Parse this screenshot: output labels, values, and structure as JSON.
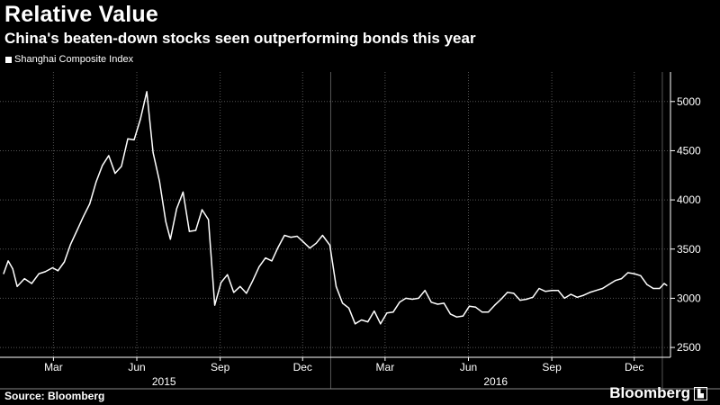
{
  "header": {
    "title": "Relative Value",
    "subtitle": "China's beaten-down stocks seen outperforming bonds this year"
  },
  "legend": {
    "label": "Shanghai Composite Index"
  },
  "footer": {
    "source": "Source: Bloomberg",
    "brand": "Bloomberg"
  },
  "colors": {
    "background": "#000000",
    "line": "#ffffff",
    "grid": "#555555"
  },
  "chart_data": {
    "type": "line",
    "title": "Relative Value",
    "subtitle": "China's beaten-down stocks seen outperforming bonds this year",
    "xlabel": "",
    "ylabel": "",
    "ylim": [
      2400,
      5300
    ],
    "y_ticks": [
      2500,
      3000,
      3500,
      4000,
      4500,
      5000
    ],
    "x_range": [
      "2015-01-01",
      "2017-01-10"
    ],
    "x_ticks": [
      {
        "date": "2015-03-01",
        "label": "Mar"
      },
      {
        "date": "2015-06-01",
        "label": "Jun"
      },
      {
        "date": "2015-09-01",
        "label": "Sep"
      },
      {
        "date": "2015-12-01",
        "label": "Dec"
      },
      {
        "date": "2016-03-01",
        "label": "Mar"
      },
      {
        "date": "2016-06-01",
        "label": "Jun"
      },
      {
        "date": "2016-09-01",
        "label": "Sep"
      },
      {
        "date": "2016-12-01",
        "label": "Dec"
      }
    ],
    "year_labels": [
      {
        "label": "2015",
        "center": "2015-07-01"
      },
      {
        "label": "2016",
        "center": "2016-07-01"
      }
    ],
    "year_dividers": [
      "2016-01-01",
      "2017-01-01"
    ],
    "grid": true,
    "legend_position": "top-left",
    "series": [
      {
        "name": "Shanghai Composite Index",
        "x": [
          "2015-01-05",
          "2015-01-10",
          "2015-01-15",
          "2015-01-20",
          "2015-01-28",
          "2015-02-05",
          "2015-02-13",
          "2015-02-20",
          "2015-02-28",
          "2015-03-06",
          "2015-03-13",
          "2015-03-20",
          "2015-03-27",
          "2015-04-03",
          "2015-04-10",
          "2015-04-17",
          "2015-04-24",
          "2015-05-01",
          "2015-05-08",
          "2015-05-15",
          "2015-05-22",
          "2015-05-29",
          "2015-06-05",
          "2015-06-12",
          "2015-06-19",
          "2015-06-26",
          "2015-07-03",
          "2015-07-08",
          "2015-07-15",
          "2015-07-22",
          "2015-07-29",
          "2015-08-05",
          "2015-08-12",
          "2015-08-19",
          "2015-08-26",
          "2015-09-02",
          "2015-09-09",
          "2015-09-16",
          "2015-09-23",
          "2015-09-30",
          "2015-10-07",
          "2015-10-14",
          "2015-10-21",
          "2015-10-28",
          "2015-11-04",
          "2015-11-11",
          "2015-11-18",
          "2015-11-25",
          "2015-12-02",
          "2015-12-09",
          "2015-12-16",
          "2015-12-23",
          "2015-12-31",
          "2016-01-07",
          "2016-01-14",
          "2016-01-21",
          "2016-01-28",
          "2016-02-04",
          "2016-02-11",
          "2016-02-18",
          "2016-02-25",
          "2016-03-03",
          "2016-03-10",
          "2016-03-17",
          "2016-03-24",
          "2016-03-31",
          "2016-04-07",
          "2016-04-14",
          "2016-04-21",
          "2016-04-28",
          "2016-05-05",
          "2016-05-12",
          "2016-05-19",
          "2016-05-26",
          "2016-06-02",
          "2016-06-09",
          "2016-06-16",
          "2016-06-23",
          "2016-06-30",
          "2016-07-07",
          "2016-07-14",
          "2016-07-21",
          "2016-07-28",
          "2016-08-04",
          "2016-08-11",
          "2016-08-18",
          "2016-08-25",
          "2016-09-01",
          "2016-09-08",
          "2016-09-15",
          "2016-09-22",
          "2016-09-29",
          "2016-10-06",
          "2016-10-13",
          "2016-10-20",
          "2016-10-27",
          "2016-11-03",
          "2016-11-10",
          "2016-11-17",
          "2016-11-24",
          "2016-12-01",
          "2016-12-08",
          "2016-12-15",
          "2016-12-22",
          "2016-12-29",
          "2017-01-03",
          "2017-01-06"
        ],
        "values": [
          3250,
          3380,
          3300,
          3120,
          3200,
          3150,
          3250,
          3270,
          3310,
          3280,
          3370,
          3550,
          3690,
          3830,
          3960,
          4180,
          4350,
          4450,
          4270,
          4340,
          4620,
          4610,
          4820,
          5100,
          4480,
          4190,
          3780,
          3600,
          3910,
          4080,
          3680,
          3690,
          3900,
          3800,
          2930,
          3160,
          3240,
          3060,
          3120,
          3050,
          3180,
          3320,
          3410,
          3380,
          3520,
          3640,
          3620,
          3630,
          3570,
          3510,
          3560,
          3640,
          3540,
          3120,
          2950,
          2900,
          2740,
          2780,
          2760,
          2870,
          2740,
          2850,
          2860,
          2960,
          3000,
          2990,
          3000,
          3080,
          2960,
          2940,
          2950,
          2840,
          2810,
          2820,
          2920,
          2910,
          2860,
          2860,
          2930,
          2990,
          3060,
          3050,
          2980,
          2990,
          3010,
          3100,
          3070,
          3080,
          3080,
          3000,
          3040,
          3010,
          3030,
          3060,
          3080,
          3100,
          3140,
          3180,
          3200,
          3260,
          3250,
          3230,
          3140,
          3100,
          3100,
          3150,
          3130
        ]
      }
    ]
  }
}
